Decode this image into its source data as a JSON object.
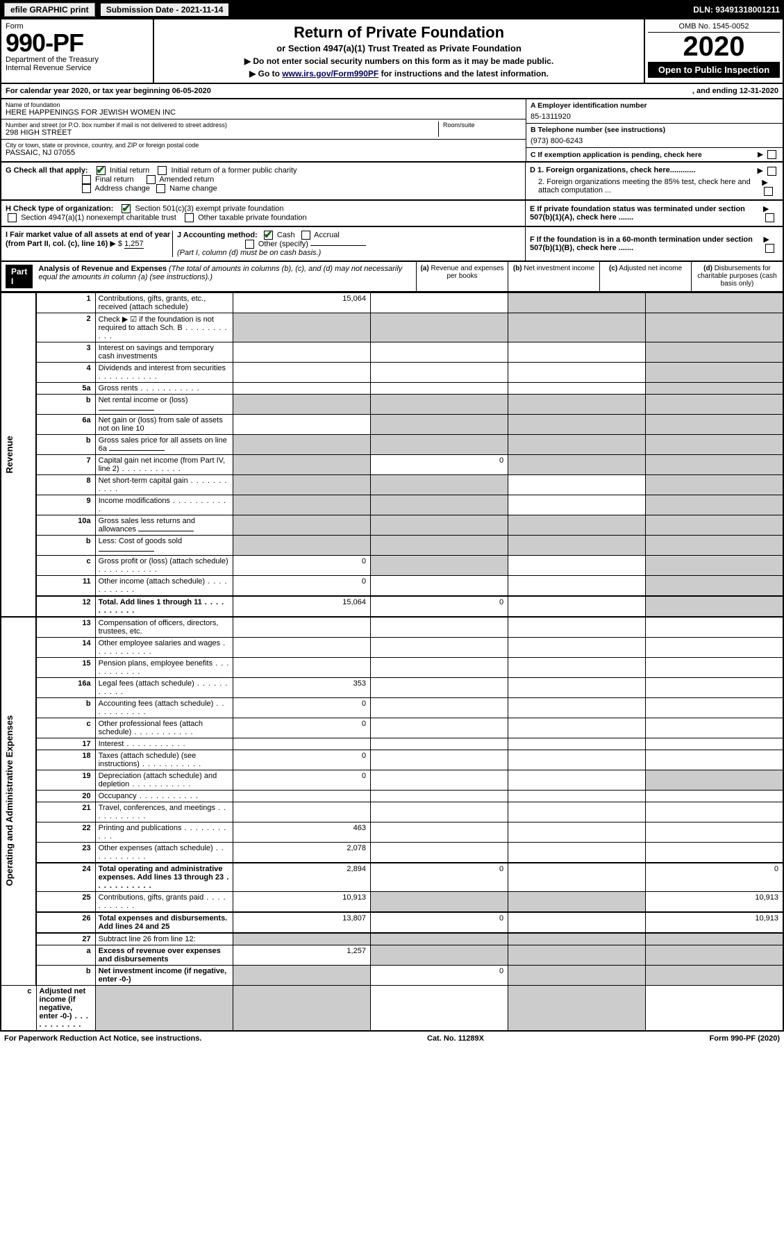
{
  "top_bar": {
    "efile_label": "efile GRAPHIC print",
    "submission_label": "Submission Date - 2021-11-14",
    "dln": "DLN: 93491318001211"
  },
  "header": {
    "form_label": "Form",
    "form_number": "990-PF",
    "dept": "Department of the Treasury",
    "irs": "Internal Revenue Service",
    "title": "Return of Private Foundation",
    "subtitle": "or Section 4947(a)(1) Trust Treated as Private Foundation",
    "note1": "▶ Do not enter social security numbers on this form as it may be made public.",
    "note2_pre": "▶ Go to ",
    "note2_link": "www.irs.gov/Form990PF",
    "note2_post": " for instructions and the latest information.",
    "omb": "OMB No. 1545-0052",
    "year": "2020",
    "open": "Open to Public Inspection"
  },
  "cal_year": {
    "text_left": "For calendar year 2020, or tax year beginning 06-05-2020",
    "text_right": ", and ending 12-31-2020"
  },
  "entity": {
    "name_lbl": "Name of foundation",
    "name": "HERE HAPPENINGS FOR JEWISH WOMEN INC",
    "addr_lbl": "Number and street (or P.O. box number if mail is not delivered to street address)",
    "addr": "298 HIGH STREET",
    "room_lbl": "Room/suite",
    "room": "",
    "city_lbl": "City or town, state or province, country, and ZIP or foreign postal code",
    "city": "PASSAIC, NJ  07055",
    "ein_lbl": "A Employer identification number",
    "ein": "85-1311920",
    "tel_lbl": "B Telephone number (see instructions)",
    "tel": "(973) 800-6243",
    "c_lbl": "C If exemption application is pending, check here",
    "d1_lbl": "D 1. Foreign organizations, check here............",
    "d2_lbl": "2. Foreign organizations meeting the 85% test, check here and attach computation ...",
    "e_lbl": "E If private foundation status was terminated under section 507(b)(1)(A), check here .......",
    "f_lbl": "F If the foundation is in a 60-month termination under section 507(b)(1)(B), check here .......",
    "g_lbl": "G Check all that apply:",
    "g_initial": "Initial return",
    "g_initial_former": "Initial return of a former public charity",
    "g_final": "Final return",
    "g_amended": "Amended return",
    "g_address": "Address change",
    "g_name": "Name change",
    "h_lbl": "H Check type of organization:",
    "h_501c3": "Section 501(c)(3) exempt private foundation",
    "h_4947": "Section 4947(a)(1) nonexempt charitable trust",
    "h_other": "Other taxable private foundation",
    "i_lbl": "I Fair market value of all assets at end of year (from Part II, col. (c), line 16)",
    "i_val": "1,257",
    "j_lbl": "J Accounting method:",
    "j_cash": "Cash",
    "j_accrual": "Accrual",
    "j_other": "Other (specify)",
    "j_note": "(Part I, column (d) must be on cash basis.)"
  },
  "part1": {
    "label": "Part I",
    "title": "Analysis of Revenue and Expenses",
    "title_note": "(The total of amounts in columns (b), (c), and (d) may not necessarily equal the amounts in column (a) (see instructions).)",
    "col_a": "(a) Revenue and expenses per books",
    "col_b": "(b) Net investment income",
    "col_c": "(c) Adjusted net income",
    "col_d": "(d) Disbursements for charitable purposes (cash basis only)",
    "side_rev": "Revenue",
    "side_exp": "Operating and Administrative Expenses"
  },
  "rows": [
    {
      "ln": "1",
      "desc": "Contributions, gifts, grants, etc., received (attach schedule)",
      "a": "15,064",
      "b": "",
      "c": "",
      "d": "",
      "shade_b": false,
      "shade_c": true,
      "shade_d": true
    },
    {
      "ln": "2",
      "desc": "Check ▶ ☑ if the foundation is not required to attach Sch. B",
      "a": "",
      "b": "",
      "c": "",
      "d": "",
      "shade_all": true,
      "dots": true
    },
    {
      "ln": "3",
      "desc": "Interest on savings and temporary cash investments",
      "a": "",
      "b": "",
      "c": "",
      "d": "",
      "shade_d": true
    },
    {
      "ln": "4",
      "desc": "Dividends and interest from securities",
      "a": "",
      "b": "",
      "c": "",
      "d": "",
      "shade_d": true,
      "dots": true
    },
    {
      "ln": "5a",
      "desc": "Gross rents",
      "a": "",
      "b": "",
      "c": "",
      "d": "",
      "shade_d": true,
      "dots": true
    },
    {
      "ln": "b",
      "desc": "Net rental income or (loss)",
      "a": "",
      "b": "",
      "c": "",
      "d": "",
      "shade_a": true,
      "shade_b": true,
      "shade_c": true,
      "shade_d": true,
      "under": true
    },
    {
      "ln": "6a",
      "desc": "Net gain or (loss) from sale of assets not on line 10",
      "a": "",
      "b": "",
      "c": "",
      "d": "",
      "shade_b": true,
      "shade_c": true,
      "shade_d": true
    },
    {
      "ln": "b",
      "desc": "Gross sales price for all assets on line 6a",
      "a": "",
      "b": "",
      "c": "",
      "d": "",
      "shade_a": true,
      "shade_b": true,
      "shade_c": true,
      "shade_d": true,
      "under": true
    },
    {
      "ln": "7",
      "desc": "Capital gain net income (from Part IV, line 2)",
      "a": "",
      "b": "0",
      "c": "",
      "d": "",
      "shade_a": true,
      "shade_c": true,
      "shade_d": true,
      "dots": true
    },
    {
      "ln": "8",
      "desc": "Net short-term capital gain",
      "a": "",
      "b": "",
      "c": "",
      "d": "",
      "shade_a": true,
      "shade_b": true,
      "shade_d": true,
      "dots": true
    },
    {
      "ln": "9",
      "desc": "Income modifications",
      "a": "",
      "b": "",
      "c": "",
      "d": "",
      "shade_a": true,
      "shade_b": true,
      "shade_d": true,
      "dots": true
    },
    {
      "ln": "10a",
      "desc": "Gross sales less returns and allowances",
      "a": "",
      "b": "",
      "c": "",
      "d": "",
      "shade_a": true,
      "shade_b": true,
      "shade_c": true,
      "shade_d": true,
      "under": true
    },
    {
      "ln": "b",
      "desc": "Less: Cost of goods sold",
      "a": "",
      "b": "",
      "c": "",
      "d": "",
      "shade_a": true,
      "shade_b": true,
      "shade_c": true,
      "shade_d": true,
      "under": true,
      "dots": true
    },
    {
      "ln": "c",
      "desc": "Gross profit or (loss) (attach schedule)",
      "a": "0",
      "b": "",
      "c": "",
      "d": "",
      "shade_b": true,
      "shade_d": true,
      "dots": true
    },
    {
      "ln": "11",
      "desc": "Other income (attach schedule)",
      "a": "0",
      "b": "",
      "c": "",
      "d": "",
      "shade_d": true,
      "dots": true
    },
    {
      "ln": "12",
      "desc": "Total. Add lines 1 through 11",
      "a": "15,064",
      "b": "0",
      "c": "",
      "d": "",
      "bold": true,
      "shade_d": true,
      "dots": true
    },
    {
      "ln": "13",
      "desc": "Compensation of officers, directors, trustees, etc.",
      "a": "",
      "b": "",
      "c": "",
      "d": ""
    },
    {
      "ln": "14",
      "desc": "Other employee salaries and wages",
      "a": "",
      "b": "",
      "c": "",
      "d": "",
      "dots": true
    },
    {
      "ln": "15",
      "desc": "Pension plans, employee benefits",
      "a": "",
      "b": "",
      "c": "",
      "d": "",
      "dots": true
    },
    {
      "ln": "16a",
      "desc": "Legal fees (attach schedule)",
      "a": "353",
      "b": "",
      "c": "",
      "d": "",
      "dots": true
    },
    {
      "ln": "b",
      "desc": "Accounting fees (attach schedule)",
      "a": "0",
      "b": "",
      "c": "",
      "d": "",
      "dots": true
    },
    {
      "ln": "c",
      "desc": "Other professional fees (attach schedule)",
      "a": "0",
      "b": "",
      "c": "",
      "d": "",
      "dots": true
    },
    {
      "ln": "17",
      "desc": "Interest",
      "a": "",
      "b": "",
      "c": "",
      "d": "",
      "dots": true
    },
    {
      "ln": "18",
      "desc": "Taxes (attach schedule) (see instructions)",
      "a": "0",
      "b": "",
      "c": "",
      "d": "",
      "dots": true
    },
    {
      "ln": "19",
      "desc": "Depreciation (attach schedule) and depletion",
      "a": "0",
      "b": "",
      "c": "",
      "d": "",
      "shade_d": true,
      "dots": true
    },
    {
      "ln": "20",
      "desc": "Occupancy",
      "a": "",
      "b": "",
      "c": "",
      "d": "",
      "dots": true
    },
    {
      "ln": "21",
      "desc": "Travel, conferences, and meetings",
      "a": "",
      "b": "",
      "c": "",
      "d": "",
      "dots": true
    },
    {
      "ln": "22",
      "desc": "Printing and publications",
      "a": "463",
      "b": "",
      "c": "",
      "d": "",
      "dots": true
    },
    {
      "ln": "23",
      "desc": "Other expenses (attach schedule)",
      "a": "2,078",
      "b": "",
      "c": "",
      "d": "",
      "dots": true
    },
    {
      "ln": "24",
      "desc": "Total operating and administrative expenses. Add lines 13 through 23",
      "a": "2,894",
      "b": "0",
      "c": "",
      "d": "0",
      "bold": true,
      "dots": true
    },
    {
      "ln": "25",
      "desc": "Contributions, gifts, grants paid",
      "a": "10,913",
      "b": "",
      "c": "",
      "d": "10,913",
      "shade_b": true,
      "shade_c": true,
      "dots": true
    },
    {
      "ln": "26",
      "desc": "Total expenses and disbursements. Add lines 24 and 25",
      "a": "13,807",
      "b": "0",
      "c": "",
      "d": "10,913",
      "bold": true
    },
    {
      "ln": "27",
      "desc": "Subtract line 26 from line 12:",
      "a": "",
      "b": "",
      "c": "",
      "d": "",
      "shade_a": true,
      "shade_b": true,
      "shade_c": true,
      "shade_d": true
    },
    {
      "ln": "a",
      "desc": "Excess of revenue over expenses and disbursements",
      "a": "1,257",
      "b": "",
      "c": "",
      "d": "",
      "bold": true,
      "shade_b": true,
      "shade_c": true,
      "shade_d": true
    },
    {
      "ln": "b",
      "desc": "Net investment income (if negative, enter -0-)",
      "a": "",
      "b": "0",
      "c": "",
      "d": "",
      "bold": true,
      "shade_a": true,
      "shade_c": true,
      "shade_d": true
    },
    {
      "ln": "c",
      "desc": "Adjusted net income (if negative, enter -0-)",
      "a": "",
      "b": "",
      "c": "",
      "d": "",
      "bold": true,
      "shade_a": true,
      "shade_b": true,
      "shade_d": true,
      "dots": true
    }
  ],
  "footer": {
    "left": "For Paperwork Reduction Act Notice, see instructions.",
    "mid": "Cat. No. 11289X",
    "right": "Form 990-PF (2020)"
  },
  "colors": {
    "black": "#000000",
    "white": "#ffffff",
    "shade": "#cccccc",
    "green_check": "#006600",
    "link_blue": "#000066"
  }
}
